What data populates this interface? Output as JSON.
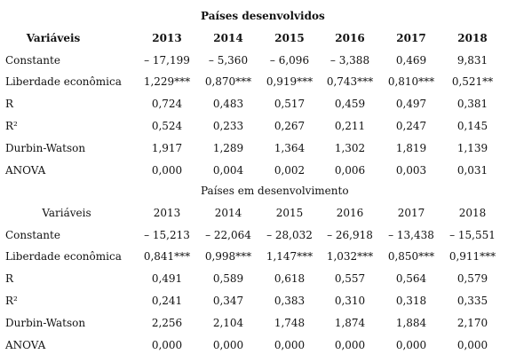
{
  "sections": [
    {
      "title": "Países desenvolvidos",
      "header": [
        "Variáveis",
        "2013",
        "2014",
        "2015",
        "2016",
        "2017",
        "2018"
      ],
      "rows": [
        [
          "Constante",
          "– 17,199",
          "– 5,360",
          "– 6,096",
          "– 3,388",
          "0,469",
          "9,831"
        ],
        [
          "Liberdade econômica",
          "1,229***",
          "0,870***",
          "0,919***",
          "0,743***",
          "0,810***",
          "0,521**"
        ],
        [
          "R",
          "0,724",
          "0,483",
          "0,517",
          "0,459",
          "0,497",
          "0,381"
        ],
        [
          "R²",
          "0,524",
          "0,233",
          "0,267",
          "0,211",
          "0,247",
          "0,145"
        ],
        [
          "Durbin-Watson",
          "1,917",
          "1,289",
          "1,364",
          "1,302",
          "1,819",
          "1,139"
        ],
        [
          "ANOVA",
          "0,000",
          "0,004",
          "0,002",
          "0,006",
          "0,003",
          "0,031"
        ]
      ]
    },
    {
      "title": "Países em desenvolvimento",
      "header": [
        "Variáveis",
        "2013",
        "2014",
        "2015",
        "2016",
        "2017",
        "2018"
      ],
      "rows": [
        [
          "Constante",
          "– 15,213",
          "– 22,064",
          "– 28,032",
          "– 26,918",
          "– 13,438",
          "– 15,551"
        ],
        [
          "Liberdade econômica",
          "0,841***",
          "0,998***",
          "1,147***",
          "1,032***",
          "0,850***",
          "0,911***"
        ],
        [
          "R",
          "0,491",
          "0,589",
          "0,618",
          "0,557",
          "0,564",
          "0,579"
        ],
        [
          "R²",
          "0,241",
          "0,347",
          "0,383",
          "0,310",
          "0,318",
          "0,335"
        ],
        [
          "Durbin-Watson",
          "2,256",
          "2,104",
          "1,748",
          "1,874",
          "1,884",
          "2,170"
        ],
        [
          "ANOVA",
          "0,000",
          "0,000",
          "0,000",
          "0,000",
          "0,000",
          "0,000"
        ]
      ]
    }
  ]
}
